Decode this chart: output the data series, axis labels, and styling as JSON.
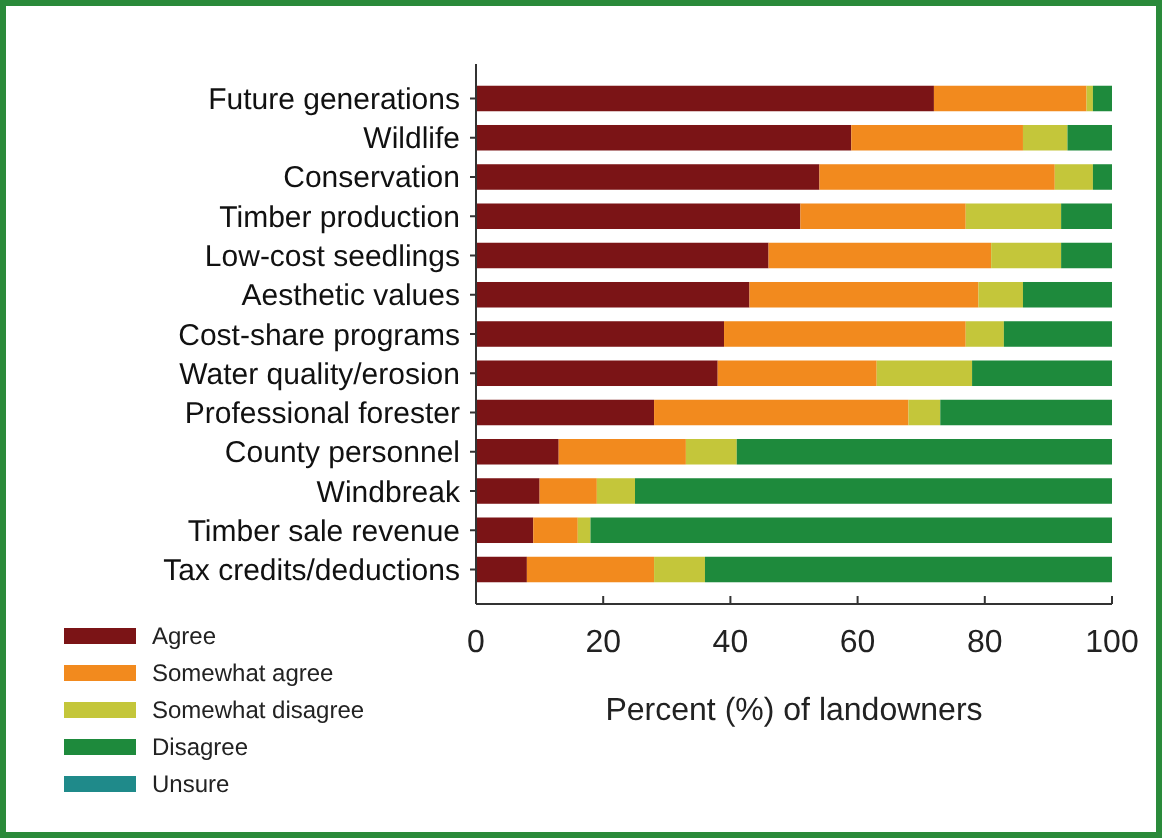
{
  "chart_data": {
    "type": "bar",
    "orientation": "horizontal",
    "stacked": true,
    "xlabel": "Percent (%) of landowners",
    "categories": [
      "Future generations",
      "Wildlife",
      "Conservation",
      "Timber production",
      "Low-cost seedlings",
      "Aesthetic values",
      "Cost-share programs",
      "Water quality/erosion",
      "Professional forester",
      "County personnel",
      "Windbreak",
      "Timber sale revenue",
      "Tax credits/deductions"
    ],
    "series": [
      {
        "name": "Agree",
        "color": "#7b1416",
        "values": [
          72,
          59,
          54,
          51,
          46,
          43,
          39,
          38,
          28,
          13,
          10,
          9,
          8
        ]
      },
      {
        "name": "Somewhat agree",
        "color": "#f28a1e",
        "values": [
          24,
          27,
          37,
          26,
          35,
          36,
          38,
          25,
          40,
          20,
          9,
          7,
          20
        ]
      },
      {
        "name": "Somewhat disagree",
        "color": "#c4c63a",
        "values": [
          1,
          7,
          6,
          15,
          11,
          7,
          6,
          15,
          5,
          8,
          6,
          2,
          8
        ]
      },
      {
        "name": "Disagree",
        "color": "#1e8a3c",
        "values": [
          3,
          7,
          3,
          8,
          8,
          14,
          17,
          22,
          27,
          59,
          75,
          82,
          64
        ]
      },
      {
        "name": "Unsure",
        "color": "#1f8a8a",
        "values": [
          0,
          0,
          0,
          0,
          0,
          0,
          0,
          0,
          0,
          0,
          0,
          0,
          0
        ]
      }
    ],
    "xlim": [
      0,
      100
    ],
    "xticks": [
      0,
      20,
      40,
      60,
      80,
      100
    ],
    "legend": "bottom left",
    "grid": false
  }
}
